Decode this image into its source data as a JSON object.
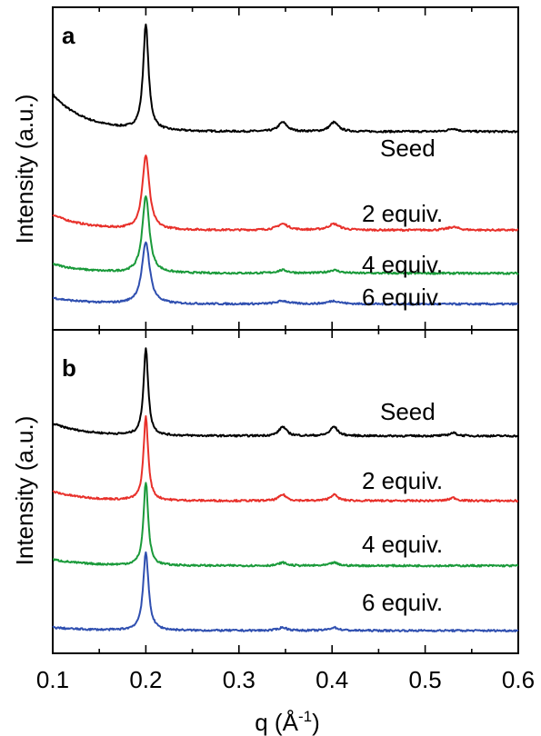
{
  "chart_data": [
    {
      "panel": "a",
      "type": "line",
      "xlabel": "q (Å-1)",
      "ylabel": "Intensity (a.u.)",
      "xlim": [
        0.1,
        0.6
      ],
      "x_ticks": [
        "0.1",
        "0.2",
        "0.3",
        "0.4",
        "0.5",
        "0.6"
      ],
      "series": [
        {
          "name": "Seed",
          "color": "#000000",
          "baseline": 0.62,
          "start_rise": 0.12,
          "peaks": [
            [
              0.2,
              0.96
            ],
            [
              0.347,
              0.03
            ],
            [
              0.402,
              0.03
            ],
            [
              0.53,
              0.01
            ]
          ],
          "peak_width": 0.0035
        },
        {
          "name": "2 equiv.",
          "color": "#e8302a",
          "baseline": 0.3,
          "start_rise": 0.05,
          "peaks": [
            [
              0.2,
              0.54
            ],
            [
              0.347,
              0.02
            ],
            [
              0.402,
              0.02
            ],
            [
              0.53,
              0.01
            ]
          ],
          "peak_width": 0.0045
        },
        {
          "name": "4 equiv.",
          "color": "#1a9a3a",
          "baseline": 0.16,
          "start_rise": 0.03,
          "peaks": [
            [
              0.2,
              0.41
            ],
            [
              0.347,
              0.01
            ],
            [
              0.402,
              0.01
            ]
          ],
          "peak_width": 0.0045
        },
        {
          "name": "6 equiv.",
          "color": "#2f4fb0",
          "baseline": 0.06,
          "start_rise": 0.02,
          "peaks": [
            [
              0.2,
              0.26
            ],
            [
              0.347,
              0.01
            ],
            [
              0.402,
              0.01
            ]
          ],
          "peak_width": 0.005
        }
      ]
    },
    {
      "panel": "b",
      "type": "line",
      "xlabel": "q (Å-1)",
      "ylabel": "Intensity (a.u.)",
      "xlim": [
        0.1,
        0.6
      ],
      "x_ticks": [
        "0.1",
        "0.2",
        "0.3",
        "0.4",
        "0.5",
        "0.6"
      ],
      "series": [
        {
          "name": "Seed",
          "color": "#000000",
          "baseline": 0.68,
          "start_rise": 0.04,
          "peaks": [
            [
              0.2,
              0.96
            ],
            [
              0.347,
              0.03
            ],
            [
              0.402,
              0.03
            ],
            [
              0.53,
              0.01
            ]
          ],
          "peak_width": 0.003
        },
        {
          "name": "2 equiv.",
          "color": "#e8302a",
          "baseline": 0.47,
          "start_rise": 0.03,
          "peaks": [
            [
              0.2,
              0.74
            ],
            [
              0.347,
              0.02
            ],
            [
              0.402,
              0.02
            ],
            [
              0.53,
              0.01
            ]
          ],
          "peak_width": 0.003
        },
        {
          "name": "4 equiv.",
          "color": "#1a9a3a",
          "baseline": 0.26,
          "start_rise": 0.02,
          "peaks": [
            [
              0.2,
              0.53
            ],
            [
              0.347,
              0.01
            ],
            [
              0.402,
              0.01
            ]
          ],
          "peak_width": 0.003
        },
        {
          "name": "6 equiv.",
          "color": "#2f4fb0",
          "baseline": 0.05,
          "start_rise": 0.01,
          "peaks": [
            [
              0.2,
              0.3
            ],
            [
              0.347,
              0.01
            ],
            [
              0.402,
              0.01
            ]
          ],
          "peak_width": 0.0035
        }
      ]
    }
  ],
  "panels": {
    "a": {
      "letter": "a",
      "labels": [
        "Seed",
        "2 equiv.",
        "4 equiv.",
        "6 equiv."
      ]
    },
    "b": {
      "letter": "b",
      "labels": [
        "Seed",
        "2 equiv.",
        "4 equiv.",
        "6 equiv."
      ]
    }
  },
  "axis": {
    "ylabel": "Intensity (a.u.)",
    "xlabel_main": "q (Å",
    "xlabel_sup": "-1",
    "xlabel_close": ")"
  }
}
